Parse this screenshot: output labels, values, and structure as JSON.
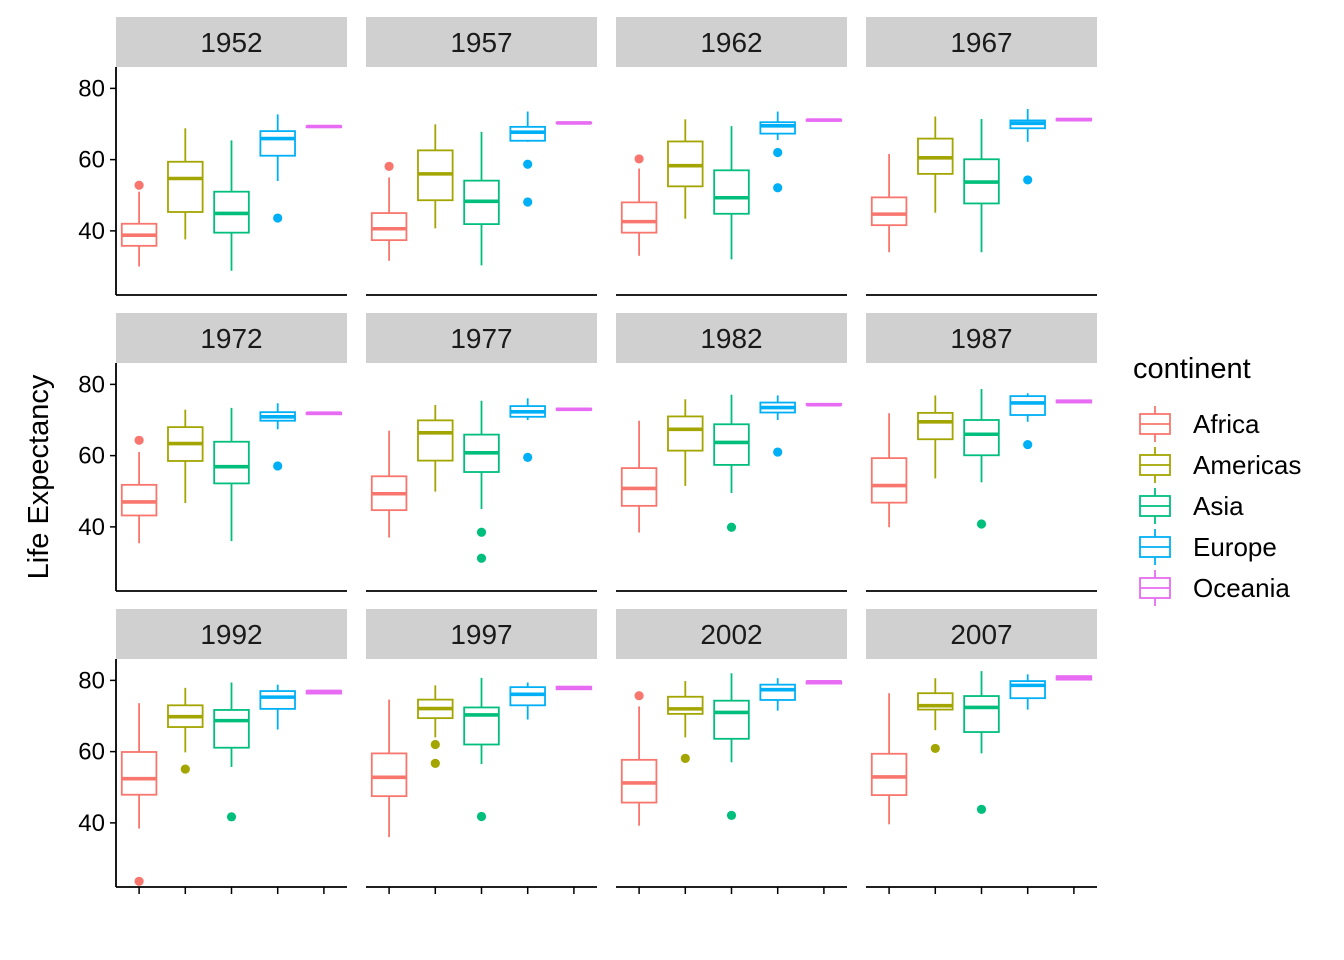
{
  "chart_data": {
    "type": "boxplot",
    "ylabel": "Life Expectancy",
    "xlabel": "",
    "ylim": [
      22,
      86
    ],
    "y_ticks": [
      40,
      60,
      80
    ],
    "grid": false,
    "legend": {
      "title": "continent",
      "position": "right",
      "entries": [
        "Africa",
        "Americas",
        "Asia",
        "Europe",
        "Oceania"
      ]
    },
    "colors": {
      "Africa": "#F8766D",
      "Americas": "#A3A500",
      "Asia": "#00BF7D",
      "Europe": "#00B0F6",
      "Oceania": "#E76BF3"
    },
    "facets": [
      {
        "label": "1952",
        "boxes": [
          {
            "group": "Africa",
            "lower": 30,
            "q1": 35.8,
            "median": 38.8,
            "q3": 42,
            "upper": 51,
            "outliers": [
              52.8
            ]
          },
          {
            "group": "Americas",
            "lower": 37.6,
            "q1": 45.3,
            "median": 54.7,
            "q3": 59.4,
            "upper": 68.8,
            "outliers": []
          },
          {
            "group": "Asia",
            "lower": 28.8,
            "q1": 39.5,
            "median": 44.9,
            "q3": 51,
            "upper": 65.4,
            "outliers": []
          },
          {
            "group": "Europe",
            "lower": 54,
            "q1": 61.1,
            "median": 65.9,
            "q3": 68,
            "upper": 72.7,
            "outliers": [
              43.6
            ]
          },
          {
            "group": "Oceania",
            "lower": 69.1,
            "q1": 69.1,
            "median": 69.3,
            "q3": 69.4,
            "upper": 69.4,
            "outliers": []
          }
        ]
      },
      {
        "label": "1957",
        "boxes": [
          {
            "group": "Africa",
            "lower": 31.6,
            "q1": 37.4,
            "median": 40.6,
            "q3": 45,
            "upper": 55,
            "outliers": [
              58.1
            ]
          },
          {
            "group": "Americas",
            "lower": 40.7,
            "q1": 48.6,
            "median": 56,
            "q3": 62.6,
            "upper": 69.9,
            "outliers": []
          },
          {
            "group": "Asia",
            "lower": 30.3,
            "q1": 41.9,
            "median": 48.3,
            "q3": 54.1,
            "upper": 67.8,
            "outliers": []
          },
          {
            "group": "Europe",
            "lower": 65,
            "q1": 65.3,
            "median": 67.7,
            "q3": 69.2,
            "upper": 73.5,
            "outliers": [
              58.7,
              48.1
            ]
          },
          {
            "group": "Oceania",
            "lower": 70.3,
            "q1": 70.3,
            "median": 70.3,
            "q3": 70.4,
            "upper": 70.4,
            "outliers": []
          }
        ]
      },
      {
        "label": "1962",
        "boxes": [
          {
            "group": "Africa",
            "lower": 33,
            "q1": 39.5,
            "median": 42.6,
            "q3": 48,
            "upper": 57.5,
            "outliers": [
              60.2
            ]
          },
          {
            "group": "Americas",
            "lower": 43.4,
            "q1": 52.5,
            "median": 58.3,
            "q3": 65.1,
            "upper": 71.3,
            "outliers": []
          },
          {
            "group": "Asia",
            "lower": 32,
            "q1": 44.8,
            "median": 49.3,
            "q3": 57,
            "upper": 69.4,
            "outliers": []
          },
          {
            "group": "Europe",
            "lower": 65.5,
            "q1": 67.3,
            "median": 69.5,
            "q3": 70.5,
            "upper": 73.5,
            "outliers": [
              62,
              52.1
            ]
          },
          {
            "group": "Oceania",
            "lower": 70.9,
            "q1": 70.9,
            "median": 71.1,
            "q3": 71.2,
            "upper": 71.2,
            "outliers": []
          }
        ]
      },
      {
        "label": "1967",
        "boxes": [
          {
            "group": "Africa",
            "lower": 34,
            "q1": 41.6,
            "median": 44.7,
            "q3": 49.4,
            "upper": 61.6,
            "outliers": []
          },
          {
            "group": "Americas",
            "lower": 45.1,
            "q1": 56,
            "median": 60.5,
            "q3": 65.9,
            "upper": 72.1,
            "outliers": []
          },
          {
            "group": "Asia",
            "lower": 34,
            "q1": 47.7,
            "median": 53.7,
            "q3": 60.1,
            "upper": 71.4,
            "outliers": []
          },
          {
            "group": "Europe",
            "lower": 65,
            "q1": 68.8,
            "median": 70.2,
            "q3": 71,
            "upper": 74.2,
            "outliers": [
              54.3
            ]
          },
          {
            "group": "Oceania",
            "lower": 71,
            "q1": 71,
            "median": 71.2,
            "q3": 71.5,
            "upper": 71.5,
            "outliers": []
          }
        ]
      },
      {
        "label": "1972",
        "boxes": [
          {
            "group": "Africa",
            "lower": 35.4,
            "q1": 43.2,
            "median": 47,
            "q3": 51.8,
            "upper": 61,
            "outliers": [
              64.3
            ]
          },
          {
            "group": "Americas",
            "lower": 46.7,
            "q1": 58.5,
            "median": 63.4,
            "q3": 68,
            "upper": 72.9,
            "outliers": []
          },
          {
            "group": "Asia",
            "lower": 36,
            "q1": 52.2,
            "median": 56.9,
            "q3": 63.9,
            "upper": 73.4,
            "outliers": []
          },
          {
            "group": "Europe",
            "lower": 67.4,
            "q1": 69.8,
            "median": 70.9,
            "q3": 72.2,
            "upper": 74.7,
            "outliers": [
              57.1
            ]
          },
          {
            "group": "Oceania",
            "lower": 71.6,
            "q1": 71.6,
            "median": 71.9,
            "q3": 72,
            "upper": 72,
            "outliers": []
          }
        ]
      },
      {
        "label": "1977",
        "boxes": [
          {
            "group": "Africa",
            "lower": 37,
            "q1": 44.7,
            "median": 49.3,
            "q3": 54.2,
            "upper": 67,
            "outliers": []
          },
          {
            "group": "Americas",
            "lower": 49.9,
            "q1": 58.6,
            "median": 66.4,
            "q3": 69.9,
            "upper": 74.2,
            "outliers": []
          },
          {
            "group": "Asia",
            "lower": 45,
            "q1": 55.4,
            "median": 60.8,
            "q3": 65.9,
            "upper": 75.4,
            "outliers": [
              38.5,
              31.2
            ]
          },
          {
            "group": "Europe",
            "lower": 70,
            "q1": 70.9,
            "median": 72.3,
            "q3": 73.9,
            "upper": 76.1,
            "outliers": [
              59.5
            ]
          },
          {
            "group": "Oceania",
            "lower": 72.8,
            "q1": 72.8,
            "median": 73,
            "q3": 73.2,
            "upper": 73.2,
            "outliers": []
          }
        ]
      },
      {
        "label": "1982",
        "boxes": [
          {
            "group": "Africa",
            "lower": 38.4,
            "q1": 45.9,
            "median": 50.8,
            "q3": 56.5,
            "upper": 69.8,
            "outliers": []
          },
          {
            "group": "Americas",
            "lower": 51.5,
            "q1": 61.4,
            "median": 67.4,
            "q3": 71,
            "upper": 75.8,
            "outliers": []
          },
          {
            "group": "Asia",
            "lower": 49.5,
            "q1": 57.4,
            "median": 63.7,
            "q3": 68.8,
            "upper": 77.1,
            "outliers": [
              39.9
            ]
          },
          {
            "group": "Europe",
            "lower": 70,
            "q1": 72.1,
            "median": 73.5,
            "q3": 74.9,
            "upper": 76.9,
            "outliers": [
              61
            ]
          },
          {
            "group": "Oceania",
            "lower": 74.3,
            "q1": 74.3,
            "median": 74.3,
            "q3": 74.5,
            "upper": 74.5,
            "outliers": []
          }
        ]
      },
      {
        "label": "1987",
        "boxes": [
          {
            "group": "Africa",
            "lower": 39.9,
            "q1": 46.8,
            "median": 51.6,
            "q3": 59.3,
            "upper": 71.9,
            "outliers": []
          },
          {
            "group": "Americas",
            "lower": 53.6,
            "q1": 64.6,
            "median": 69.5,
            "q3": 72,
            "upper": 76.9,
            "outliers": []
          },
          {
            "group": "Asia",
            "lower": 52.5,
            "q1": 60.1,
            "median": 66,
            "q3": 70,
            "upper": 78.7,
            "outliers": [
              40.8
            ]
          },
          {
            "group": "Europe",
            "lower": 69.5,
            "q1": 71.4,
            "median": 74.8,
            "q3": 76.7,
            "upper": 77.5,
            "outliers": [
              63.1
            ]
          },
          {
            "group": "Oceania",
            "lower": 74.9,
            "q1": 74.9,
            "median": 75.3,
            "q3": 75.5,
            "upper": 75.5,
            "outliers": []
          }
        ]
      },
      {
        "label": "1992",
        "boxes": [
          {
            "group": "Africa",
            "lower": 38.4,
            "q1": 47.9,
            "median": 52.4,
            "q3": 59.9,
            "upper": 73.6,
            "outliers": [
              23.6
            ]
          },
          {
            "group": "Americas",
            "lower": 59.8,
            "q1": 66.9,
            "median": 69.8,
            "q3": 73,
            "upper": 77.9,
            "outliers": [
              55.1
            ]
          },
          {
            "group": "Asia",
            "lower": 55.7,
            "q1": 61.1,
            "median": 68.7,
            "q3": 71.7,
            "upper": 79.4,
            "outliers": [
              41.7
            ]
          },
          {
            "group": "Europe",
            "lower": 66.2,
            "q1": 72,
            "median": 75.3,
            "q3": 77,
            "upper": 78.8,
            "outliers": []
          },
          {
            "group": "Oceania",
            "lower": 76.3,
            "q1": 76.3,
            "median": 76.9,
            "q3": 77,
            "upper": 77,
            "outliers": []
          }
        ]
      },
      {
        "label": "1997",
        "boxes": [
          {
            "group": "Africa",
            "lower": 36,
            "q1": 47.5,
            "median": 52.8,
            "q3": 59.5,
            "upper": 74.6,
            "outliers": []
          },
          {
            "group": "Americas",
            "lower": 64,
            "q1": 69.4,
            "median": 72.1,
            "q3": 74.6,
            "upper": 78.6,
            "outliers": [
              62,
              56.7
            ]
          },
          {
            "group": "Asia",
            "lower": 56.5,
            "q1": 62,
            "median": 70.3,
            "q3": 72.4,
            "upper": 80.7,
            "outliers": [
              41.8
            ]
          },
          {
            "group": "Europe",
            "lower": 69,
            "q1": 73,
            "median": 76.1,
            "q3": 78.1,
            "upper": 79.4,
            "outliers": []
          },
          {
            "group": "Oceania",
            "lower": 77.5,
            "q1": 77.5,
            "median": 78,
            "q3": 78.2,
            "upper": 78.2,
            "outliers": []
          }
        ]
      },
      {
        "label": "2002",
        "boxes": [
          {
            "group": "Africa",
            "lower": 39.2,
            "q1": 45.7,
            "median": 51.2,
            "q3": 57.7,
            "upper": 72.7,
            "outliers": [
              75.7
            ]
          },
          {
            "group": "Americas",
            "lower": 64,
            "q1": 70.6,
            "median": 72,
            "q3": 75.4,
            "upper": 79.8,
            "outliers": [
              58.1
            ]
          },
          {
            "group": "Asia",
            "lower": 57,
            "q1": 63.6,
            "median": 71,
            "q3": 74.3,
            "upper": 82,
            "outliers": [
              42.1
            ]
          },
          {
            "group": "Europe",
            "lower": 71.5,
            "q1": 74.5,
            "median": 77.4,
            "q3": 78.8,
            "upper": 80.6,
            "outliers": []
          },
          {
            "group": "Oceania",
            "lower": 79.1,
            "q1": 79.1,
            "median": 79.6,
            "q3": 79.7,
            "upper": 79.7,
            "outliers": []
          }
        ]
      },
      {
        "label": "2007",
        "boxes": [
          {
            "group": "Africa",
            "lower": 39.6,
            "q1": 47.8,
            "median": 52.9,
            "q3": 59.4,
            "upper": 76.4,
            "outliers": []
          },
          {
            "group": "Americas",
            "lower": 66,
            "q1": 71.8,
            "median": 72.9,
            "q3": 76.4,
            "upper": 80.6,
            "outliers": [
              60.9
            ]
          },
          {
            "group": "Asia",
            "lower": 59.5,
            "q1": 65.5,
            "median": 72.4,
            "q3": 75.6,
            "upper": 82.6,
            "outliers": [
              43.8
            ]
          },
          {
            "group": "Europe",
            "lower": 71.8,
            "q1": 75,
            "median": 78.6,
            "q3": 79.8,
            "upper": 81.7,
            "outliers": []
          },
          {
            "group": "Oceania",
            "lower": 80.2,
            "q1": 80.2,
            "median": 80.7,
            "q3": 81.2,
            "upper": 81.2,
            "outliers": []
          }
        ]
      }
    ]
  }
}
